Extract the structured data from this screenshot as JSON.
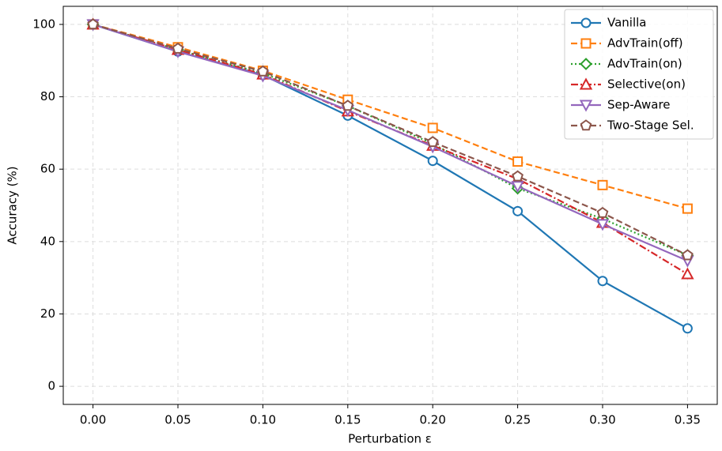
{
  "chart_data": {
    "type": "line",
    "xlabel": "Perturbation ε",
    "ylabel": "Accuracy (%)",
    "x": [
      0,
      0.05,
      0.1,
      0.15,
      0.2,
      0.25,
      0.3,
      0.35
    ],
    "xlim": [
      -0.0175,
      0.3675
    ],
    "xticks": [
      {
        "value": 0,
        "label": "0.00"
      },
      0.05,
      {
        "value": 0.1,
        "label": "0.10"
      },
      0.15,
      {
        "value": 0.2,
        "label": "0.20"
      },
      0.25,
      {
        "value": 0.3,
        "label": "0.30"
      },
      0.35
    ],
    "ylim": [
      -5,
      105
    ],
    "yticks": [
      0,
      20,
      40,
      60,
      80,
      100
    ],
    "grid": true,
    "legend": "upper right",
    "series": [
      {
        "name": "Vanilla",
        "color": "#1f77b4",
        "marker": "circle",
        "dash": "solid",
        "values": [
          100,
          92.5,
          86,
          74.8,
          62.3,
          48.4,
          29.1,
          16.0
        ]
      },
      {
        "name": "AdvTrain(off)",
        "color": "#ff7f0e",
        "marker": "square",
        "dash": "dashed",
        "values": [
          100,
          93.7,
          87.2,
          79.2,
          71.4,
          62.1,
          55.6,
          49.1
        ]
      },
      {
        "name": "AdvTrain(on)",
        "color": "#2ca02c",
        "marker": "diamond",
        "dash": "dotted",
        "values": [
          100,
          93,
          86.5,
          77.5,
          67,
          54.7,
          46.3,
          36.2
        ]
      },
      {
        "name": "Selective(on)",
        "color": "#d62728",
        "marker": "triangle-up",
        "dash": "dashdot",
        "values": [
          100,
          93,
          86.2,
          76,
          66.5,
          57.3,
          45.2,
          31.0
        ]
      },
      {
        "name": "Sep-Aware",
        "color": "#9467bd",
        "marker": "triangle-down",
        "dash": "solid",
        "values": [
          100,
          92.5,
          85.8,
          76.3,
          66.2,
          55.3,
          44.8,
          34.7
        ]
      },
      {
        "name": "Two-Stage Sel.",
        "color": "#8c564b",
        "marker": "pentagon",
        "dash": "dashed",
        "values": [
          100,
          93.3,
          87,
          77.5,
          67.5,
          58,
          47.9,
          36.2
        ]
      }
    ]
  }
}
